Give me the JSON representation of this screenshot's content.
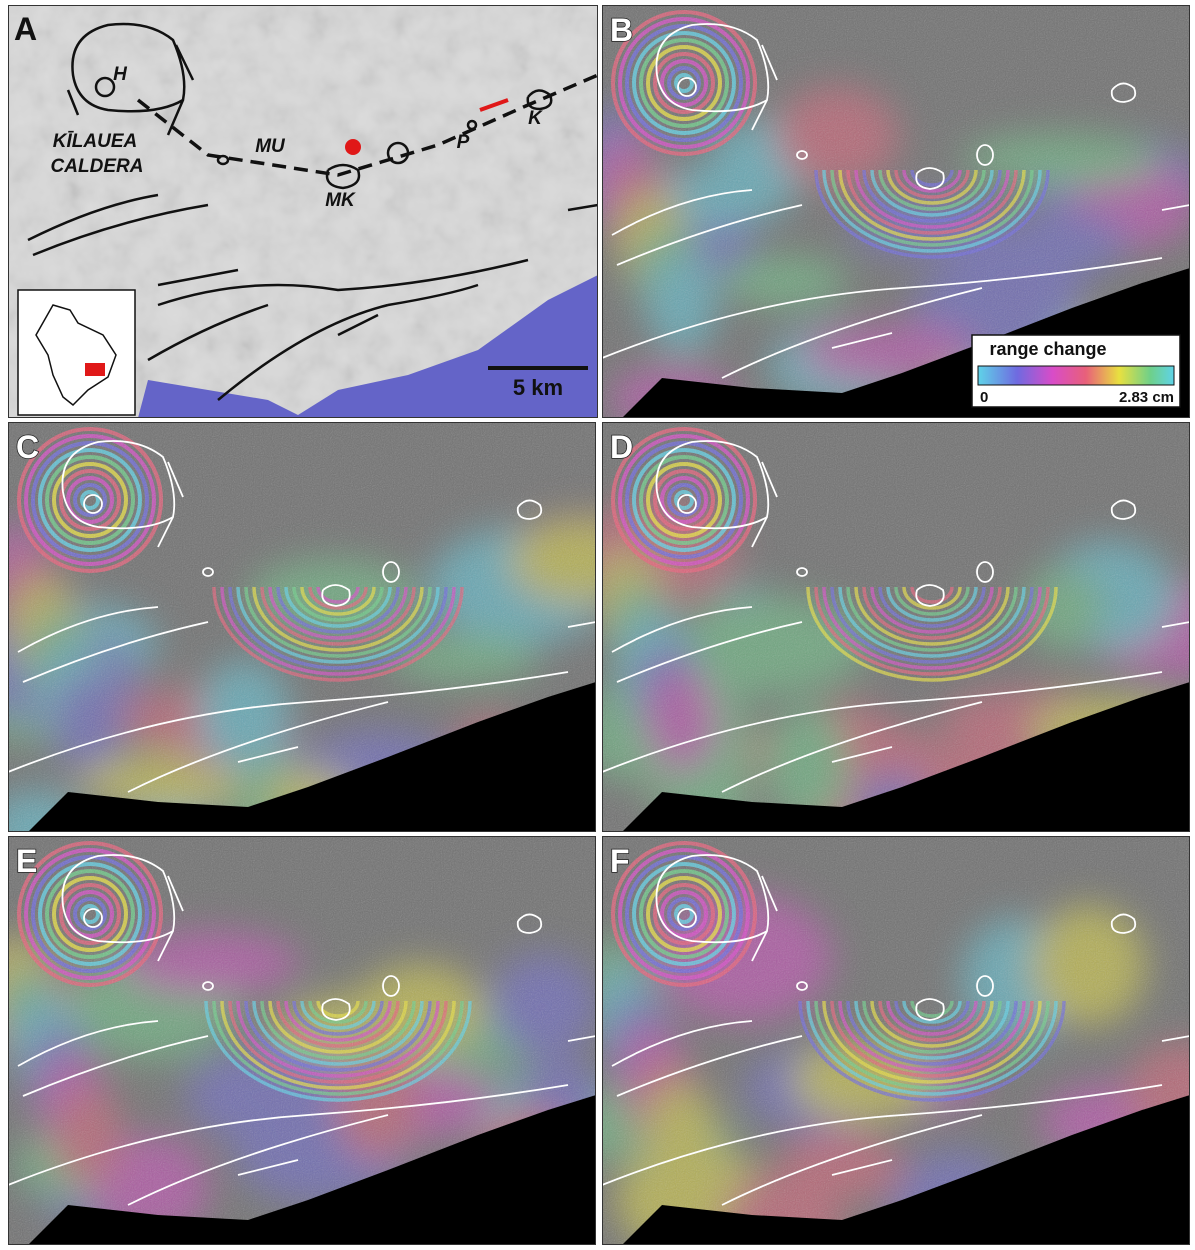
{
  "panels": [
    "A",
    "B",
    "C",
    "D",
    "E",
    "F"
  ],
  "map_labels": [
    "H",
    "KĪLAUEA",
    "CALDERA",
    "MU",
    "MK",
    "P",
    "K"
  ],
  "scale_bar": "5 km",
  "legend": {
    "title": "range change",
    "min_label": "0",
    "max_label": "2.83 cm"
  }
}
